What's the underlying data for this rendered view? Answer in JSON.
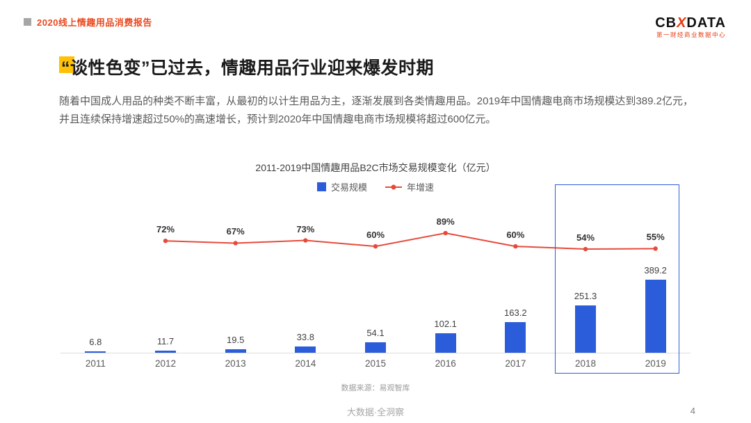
{
  "header": {
    "report_title": "2020线上情趣用品消费报告",
    "logo": {
      "prefix": "CB",
      "x": "X",
      "suffix": "DATA",
      "subtitle": "第一财经商业数据中心"
    }
  },
  "title": "“谈性色变”已过去，情趣用品行业迎来爆发时期",
  "body": "随着中国成人用品的种类不断丰富，从最初的以计生用品为主，逐渐发展到各类情趣用品。2019年中国情趣电商市场规模达到389.2亿元，并且连续保持增速超过50%的高速增长，预计到2020年中国情趣电商市场规模将超过600亿元。",
  "chart_data": {
    "type": "bar+line",
    "title": "2011-2019中国情趣用品B2C市场交易规模变化（亿元）",
    "categories": [
      "2011",
      "2012",
      "2013",
      "2014",
      "2015",
      "2016",
      "2017",
      "2018",
      "2019"
    ],
    "series": [
      {
        "name": "交易规模",
        "type": "bar",
        "unit": "亿元",
        "color": "#2b5cd9",
        "values": [
          6.8,
          11.7,
          19.5,
          33.8,
          54.1,
          102.1,
          163.2,
          251.3,
          389.2
        ]
      },
      {
        "name": "年增速",
        "type": "line",
        "unit": "%",
        "color": "#e84a3a",
        "values": [
          null,
          72,
          67,
          73,
          60,
          89,
          60,
          54,
          55
        ]
      }
    ],
    "highlight_years": [
      "2018",
      "2019"
    ],
    "highlight_color": "#2b5cd9",
    "legend_position": "top-center",
    "source": "数据来源：易观智库"
  },
  "footer": {
    "slogan": "大数据·全洞察",
    "page_number": "4"
  },
  "colors": {
    "brand_red": "#e8380d",
    "header_red": "#e8491f",
    "title_accent_yellow": "#ffc008",
    "bar_blue": "#2b5cd9",
    "line_red": "#e84a3a"
  }
}
